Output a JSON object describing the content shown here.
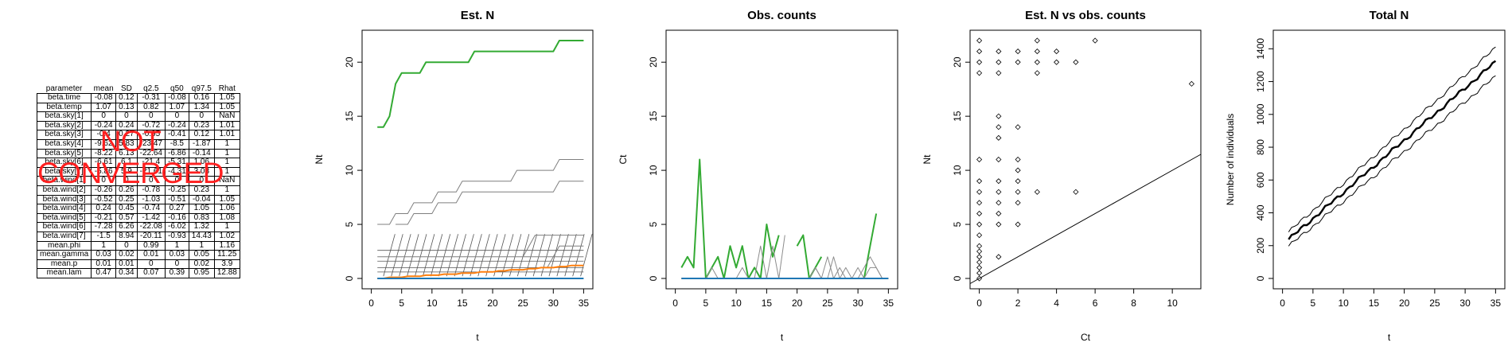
{
  "table": {
    "headers": [
      "parameter",
      "mean",
      "SD",
      "q2.5",
      "q50",
      "q97.5",
      "Rhat"
    ],
    "rows": [
      [
        "beta.time",
        "-0.08",
        "0.12",
        "-0.31",
        "-0.08",
        "0.16",
        "1.05"
      ],
      [
        "beta.temp",
        "1.07",
        "0.13",
        "0.82",
        "1.07",
        "1.34",
        "1.05"
      ],
      [
        "beta.sky[1]",
        "0",
        "0",
        "0",
        "0",
        "0",
        "NaN"
      ],
      [
        "beta.sky[2]",
        "-0.24",
        "0.24",
        "-0.72",
        "-0.24",
        "0.23",
        "1.01"
      ],
      [
        "beta.sky[3]",
        "-0.4",
        "0.27",
        "-0.95",
        "-0.41",
        "0.12",
        "1.01"
      ],
      [
        "beta.sky[4]",
        "-9.62",
        "5.83",
        "-23.47",
        "-8.5",
        "-1.87",
        "1"
      ],
      [
        "beta.sky[5]",
        "-8.22",
        "6.13",
        "-22.64",
        "-6.86",
        "-0.14",
        "1"
      ],
      [
        "beta.sky[6]",
        "-6.61",
        "6.1",
        "-21.4",
        "-5.31",
        "1.06",
        "1"
      ],
      [
        "beta.sky[7]",
        "-5.86",
        "5.9",
        "-21.61",
        "-4.31",
        "3.08",
        "1"
      ],
      [
        "beta.wind[1]",
        "0",
        "0",
        "0",
        "0",
        "0",
        "NaN"
      ],
      [
        "beta.wind[2]",
        "-0.26",
        "0.26",
        "-0.78",
        "-0.25",
        "0.23",
        "1"
      ],
      [
        "beta.wind[3]",
        "-0.52",
        "0.25",
        "-1.03",
        "-0.51",
        "-0.04",
        "1.05"
      ],
      [
        "beta.wind[4]",
        "0.24",
        "0.45",
        "-0.74",
        "0.27",
        "1.05",
        "1.06"
      ],
      [
        "beta.wind[5]",
        "-0.21",
        "0.57",
        "-1.42",
        "-0.16",
        "0.83",
        "1.08"
      ],
      [
        "beta.wind[6]",
        "-7.28",
        "6.26",
        "-22.08",
        "-6.02",
        "1.32",
        "1"
      ],
      [
        "beta.wind[7]",
        "-1.5",
        "8.94",
        "-20.11",
        "-0.93",
        "14.43",
        "1.02"
      ],
      [
        "mean.phi",
        "1",
        "0",
        "0.99",
        "1",
        "1",
        "1.16"
      ],
      [
        "mean.gamma",
        "0.03",
        "0.02",
        "0.01",
        "0.03",
        "0.05",
        "11.25"
      ],
      [
        "mean.p",
        "0.01",
        "0.01",
        "0",
        "0",
        "0.02",
        "3.9"
      ],
      [
        "mean.lam",
        "0.47",
        "0.34",
        "0.07",
        "0.39",
        "0.95",
        "12.88"
      ]
    ]
  },
  "warning": {
    "line1": "NOT",
    "line2": "CONVERGED",
    "color": "#ff1f1f"
  },
  "chart_data": [
    {
      "type": "line",
      "title": "Est. N",
      "xlabel": "t",
      "ylabel": "Nt",
      "xlim": [
        0,
        35
      ],
      "ylim": [
        0,
        22
      ],
      "xticks": [
        0,
        5,
        10,
        15,
        20,
        25,
        30,
        35
      ],
      "yticks": [
        0,
        5,
        10,
        15,
        20
      ],
      "x": [
        1,
        2,
        3,
        4,
        5,
        6,
        7,
        8,
        9,
        10,
        11,
        12,
        13,
        14,
        15,
        16,
        17,
        18,
        19,
        20,
        21,
        22,
        23,
        24,
        25,
        26,
        27,
        28,
        29,
        30,
        31,
        32,
        33,
        34,
        35
      ],
      "series": [
        {
          "color": "#33aa33",
          "values": [
            14,
            14,
            15,
            18,
            19,
            19,
            19,
            19,
            20,
            20,
            20,
            20,
            20,
            20,
            20,
            20,
            21,
            21,
            21,
            21,
            21,
            21,
            21,
            21,
            21,
            21,
            21,
            21,
            21,
            21,
            22,
            22,
            22,
            22,
            22
          ]
        },
        {
          "color": "#7f7f7f",
          "values": [
            5,
            5,
            5,
            6,
            6,
            6,
            7,
            7,
            7,
            7,
            8,
            8,
            8,
            8,
            9,
            9,
            9,
            9,
            9,
            9,
            9,
            9,
            9,
            10,
            10,
            10,
            10,
            10,
            10,
            10,
            11,
            11,
            11,
            11,
            11
          ]
        },
        {
          "color": "#7f7f7f",
          "values": [
            null,
            null,
            null,
            5,
            5,
            5,
            6,
            6,
            6,
            6,
            7,
            7,
            7,
            7,
            8,
            8,
            8,
            8,
            8,
            8,
            8,
            8,
            8,
            8,
            8,
            8,
            8,
            8,
            8,
            8,
            9,
            9,
            9,
            9,
            9
          ]
        },
        {
          "color": "#7f7f7f",
          "values": [
            null,
            null,
            null,
            null,
            null,
            null,
            null,
            null,
            null,
            null,
            null,
            null,
            null,
            null,
            null,
            null,
            null,
            null,
            null,
            null,
            null,
            null,
            null,
            null,
            2,
            3,
            4,
            4,
            4,
            4,
            4,
            4,
            4,
            4,
            4
          ]
        },
        {
          "color": "#7f7f7f",
          "values": [
            null,
            null,
            null,
            null,
            null,
            null,
            null,
            null,
            null,
            null,
            null,
            null,
            null,
            null,
            null,
            null,
            null,
            null,
            null,
            null,
            null,
            null,
            null,
            null,
            null,
            null,
            null,
            null,
            1,
            2,
            3,
            3,
            3,
            3,
            3
          ]
        },
        {
          "color": "#7f7f7f",
          "values": [
            2,
            2,
            2,
            2,
            2,
            2,
            2,
            2,
            2,
            2,
            2,
            2,
            2,
            2,
            2,
            2,
            2,
            2,
            2,
            2,
            2,
            2,
            2,
            2,
            2,
            2,
            2,
            2,
            2,
            2,
            2,
            2,
            2,
            2,
            2
          ]
        },
        {
          "color": "#ff7f0e",
          "values": [
            0,
            0,
            0.1,
            0.1,
            0.1,
            0.2,
            0.2,
            0.2,
            0.3,
            0.3,
            0.3,
            0.4,
            0.4,
            0.4,
            0.5,
            0.5,
            0.5,
            0.6,
            0.6,
            0.6,
            0.7,
            0.7,
            0.8,
            0.8,
            0.8,
            0.9,
            0.9,
            1,
            1,
            1,
            1.1,
            1.1,
            1.2,
            1.2,
            1.2
          ]
        },
        {
          "color": "#1f77b4",
          "values": [
            0,
            0,
            0,
            0,
            0,
            0,
            0,
            0,
            0,
            0,
            0,
            0,
            0,
            0,
            0,
            0,
            0,
            0,
            0,
            0,
            0,
            0,
            0,
            0,
            0,
            0,
            0,
            0,
            0,
            0,
            0,
            0,
            0,
            0,
            0
          ]
        }
      ]
    },
    {
      "type": "line",
      "title": "Obs. counts",
      "xlabel": "t",
      "ylabel": "Ct",
      "xlim": [
        0,
        35
      ],
      "ylim": [
        0,
        22
      ],
      "xticks": [
        0,
        5,
        10,
        15,
        20,
        25,
        30,
        35
      ],
      "yticks": [
        0,
        5,
        10,
        15,
        20
      ],
      "x": [
        1,
        2,
        3,
        4,
        5,
        6,
        7,
        8,
        9,
        10,
        11,
        12,
        13,
        14,
        15,
        16,
        17,
        18,
        19,
        20,
        21,
        22,
        23,
        24,
        25,
        26,
        27,
        28,
        29,
        30,
        31,
        32,
        33,
        34,
        35
      ],
      "series": [
        {
          "color": "#33aa33",
          "values": [
            1,
            2,
            1,
            11,
            0,
            1,
            2,
            0,
            3,
            1,
            3,
            0,
            1,
            0,
            5,
            2,
            4,
            null,
            null,
            3,
            4,
            0,
            1,
            2,
            null,
            null,
            null,
            0,
            0,
            0,
            0,
            3,
            6,
            null,
            null
          ]
        },
        {
          "color": "#8c8c8c",
          "values": [
            0,
            0,
            0,
            0,
            0,
            1,
            0,
            0,
            0,
            0,
            1,
            0,
            0,
            3,
            0,
            3,
            0,
            4,
            null,
            0,
            0,
            0,
            1,
            0,
            0,
            2,
            0,
            1,
            0,
            1,
            0,
            1,
            1,
            0,
            0
          ]
        },
        {
          "color": "#8c8c8c",
          "values": [
            0,
            0,
            0,
            0,
            0,
            0,
            0,
            0,
            0,
            0,
            0,
            0,
            0,
            0,
            0,
            0,
            0,
            0,
            0,
            0,
            0,
            0,
            1,
            0,
            2,
            0,
            1,
            0,
            0,
            0,
            1,
            2,
            1,
            0,
            0
          ]
        },
        {
          "color": "#ff7f0e",
          "values": [
            0,
            0,
            0,
            0,
            0,
            0,
            0,
            0,
            0,
            0,
            0,
            0,
            0,
            0,
            0,
            0,
            0,
            0,
            0,
            0,
            0,
            0,
            0,
            0,
            0,
            0,
            0,
            0,
            0,
            0,
            0,
            0,
            0,
            0,
            0
          ]
        },
        {
          "color": "#1f77b4",
          "values": [
            0,
            0,
            0,
            0,
            0,
            0,
            0,
            0,
            0,
            0,
            0,
            0,
            0,
            0,
            0,
            0,
            0,
            0,
            0,
            0,
            0,
            0,
            0,
            0,
            0,
            0,
            0,
            0,
            0,
            0,
            0,
            0,
            0,
            0,
            0
          ]
        }
      ]
    },
    {
      "type": "scatter",
      "title": "Est. N vs obs. counts",
      "xlabel": "Ct",
      "ylabel": "Nt",
      "xlim": [
        0,
        11
      ],
      "ylim": [
        0,
        22
      ],
      "xticks": [
        0,
        2,
        4,
        6,
        8,
        10
      ],
      "yticks": [
        0,
        5,
        10,
        15,
        20
      ],
      "points": [
        [
          0,
          22
        ],
        [
          0,
          21
        ],
        [
          0,
          20
        ],
        [
          0,
          19
        ],
        [
          0,
          11
        ],
        [
          0,
          9
        ],
        [
          0,
          8
        ],
        [
          0,
          7
        ],
        [
          0,
          6
        ],
        [
          0,
          5
        ],
        [
          0,
          4
        ],
        [
          0,
          3
        ],
        [
          0,
          2.5
        ],
        [
          0,
          2
        ],
        [
          0,
          1.5
        ],
        [
          0,
          1
        ],
        [
          0,
          0.5
        ],
        [
          0,
          0
        ],
        [
          1,
          21
        ],
        [
          1,
          20
        ],
        [
          1,
          19
        ],
        [
          1,
          15
        ],
        [
          1,
          14
        ],
        [
          1,
          13
        ],
        [
          1,
          11
        ],
        [
          1,
          9
        ],
        [
          1,
          8
        ],
        [
          1,
          7
        ],
        [
          1,
          6
        ],
        [
          1,
          5
        ],
        [
          1,
          2
        ],
        [
          2,
          21
        ],
        [
          2,
          20
        ],
        [
          2,
          14
        ],
        [
          2,
          11
        ],
        [
          2,
          10
        ],
        [
          2,
          9
        ],
        [
          2,
          8
        ],
        [
          2,
          7
        ],
        [
          2,
          5
        ],
        [
          3,
          22
        ],
        [
          3,
          21
        ],
        [
          3,
          20
        ],
        [
          3,
          19
        ],
        [
          3,
          8
        ],
        [
          4,
          21
        ],
        [
          4,
          20
        ],
        [
          5,
          20
        ],
        [
          5,
          8
        ],
        [
          6,
          22
        ],
        [
          11,
          18
        ]
      ],
      "line": {
        "intercept": 0,
        "slope": 1
      }
    },
    {
      "type": "line",
      "title": "Total N",
      "xlabel": "t",
      "ylabel": "Number of individuals",
      "xlim": [
        0,
        35
      ],
      "ylim": [
        0,
        1450
      ],
      "xticks": [
        0,
        5,
        10,
        15,
        20,
        25,
        30,
        35
      ],
      "yticks": [
        0,
        200,
        400,
        600,
        800,
        1000,
        1200,
        1400
      ],
      "series": [
        {
          "name": "",
          "x0": 1,
          "y0": 238,
          "x1": 35,
          "y1": 1320,
          "width": 2.4
        },
        {
          "name": "",
          "x0": 1,
          "y0": 283,
          "x1": 35,
          "y1": 1405,
          "width": 1
        },
        {
          "name": "",
          "x0": 1,
          "y0": 197,
          "x1": 35,
          "y1": 1230,
          "width": 1
        }
      ]
    }
  ]
}
